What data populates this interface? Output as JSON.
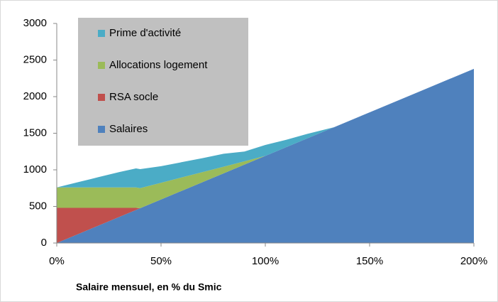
{
  "chart_data": {
    "type": "stacked_area",
    "x_title": "Salaire mensuel, en % du Smic",
    "x": [
      0,
      10,
      20,
      30,
      38,
      40,
      50,
      60,
      70,
      80,
      90,
      100,
      110,
      120,
      133,
      150,
      175,
      200
    ],
    "series": [
      {
        "name": "Salaires",
        "color": "#4f81bd",
        "values": [
          0,
          119,
          238,
          357,
          452,
          476,
          595,
          714,
          833,
          952,
          1071,
          1190,
          1309,
          1428,
          1583,
          1785,
          2083,
          2380
        ]
      },
      {
        "name": "RSA socle",
        "color": "#c0504d",
        "values": [
          480,
          361,
          242,
          123,
          28,
          0,
          0,
          0,
          0,
          0,
          0,
          0,
          0,
          0,
          0,
          0,
          0,
          0
        ]
      },
      {
        "name": "Allocations logement",
        "color": "#9bbb59",
        "values": [
          280,
          280,
          280,
          280,
          280,
          274,
          228,
          183,
          137,
          91,
          46,
          0,
          0,
          0,
          0,
          0,
          0,
          0
        ]
      },
      {
        "name": "Prime d'activité",
        "color": "#4bacc6",
        "values": [
          0,
          70,
          140,
          210,
          260,
          260,
          227,
          208,
          190,
          177,
          133,
          150,
          101,
          62,
          0,
          0,
          0,
          0
        ]
      }
    ],
    "xlim": [
      0,
      200
    ],
    "xticks": [
      {
        "value": 0,
        "label": "0%"
      },
      {
        "value": 50,
        "label": "50%"
      },
      {
        "value": 100,
        "label": "100%"
      },
      {
        "value": 150,
        "label": "150%"
      },
      {
        "value": 200,
        "label": "200%"
      }
    ],
    "ylim": [
      0,
      3000
    ],
    "yticks": [
      0,
      500,
      1000,
      1500,
      2000,
      2500,
      3000
    ],
    "legend_position": "upper left"
  }
}
